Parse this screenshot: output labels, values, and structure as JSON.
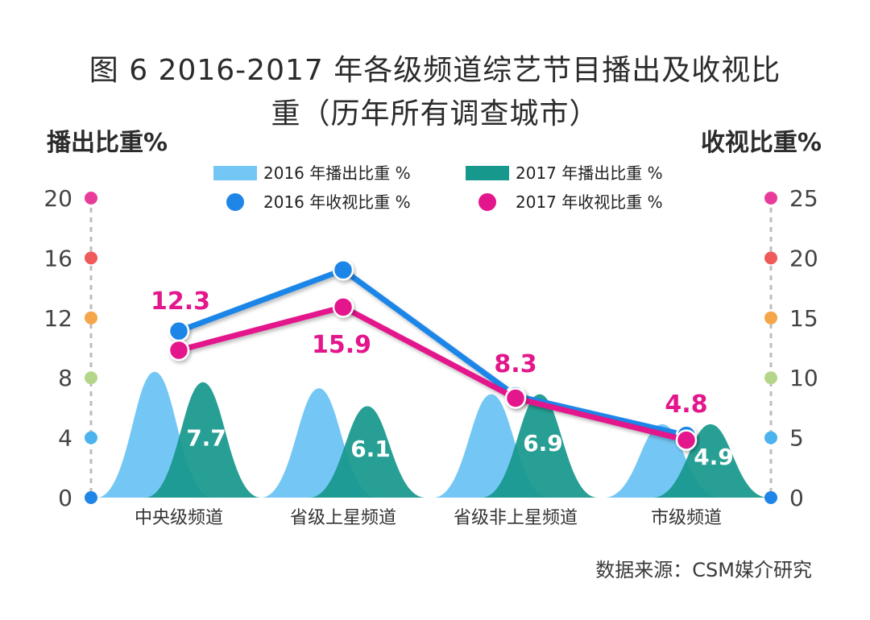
{
  "title_line1": "图 6  2016-2017 年各级频道综艺节目播出及收视比",
  "title_line2": "重（历年所有调查城市）",
  "left_axis_title": "播出比重%",
  "right_axis_title": "收视比重%",
  "source": "数据来源：CSM媒介研究",
  "colors": {
    "bar2016": "#74c7f5",
    "bar2017": "#17988c",
    "line2016": "#1f86e8",
    "line2017": "#e3168c",
    "overlap": "#0f6e8a"
  },
  "chart_data": {
    "type": "bar",
    "categories": [
      "中央级频道",
      "省级上星频道",
      "省级非上星频道",
      "市级频道"
    ],
    "left_axis": {
      "label": "播出比重%",
      "ticks": [
        0,
        4,
        8,
        12,
        16,
        20
      ],
      "range": [
        0,
        20
      ]
    },
    "right_axis": {
      "label": "收视比重%",
      "ticks": [
        0,
        5,
        10,
        15,
        20,
        25
      ],
      "range": [
        0,
        25
      ]
    },
    "series": [
      {
        "name": "2016 年播出比重 %",
        "type": "bar",
        "axis": "left",
        "values": [
          8.4,
          7.3,
          6.9,
          4.9
        ]
      },
      {
        "name": "2017 年播出比重 %",
        "type": "bar",
        "axis": "left",
        "values": [
          7.7,
          6.1,
          6.9,
          4.9
        ]
      },
      {
        "name": "2016 年收视比重 %",
        "type": "line",
        "axis": "right",
        "values": [
          13.9,
          19.0,
          8.5,
          5.2
        ]
      },
      {
        "name": "2017 年收视比重 %",
        "type": "line",
        "axis": "right",
        "values": [
          12.3,
          15.9,
          8.3,
          4.8
        ]
      }
    ],
    "bar_labels_2017": [
      "7.7",
      "6.1",
      "6.9",
      "4.9"
    ],
    "line_labels_2017": [
      "12.3",
      "15.9",
      "8.3",
      "4.8"
    ],
    "axis_dot_colors": [
      "#1f86e8",
      "#4db3ef",
      "#b5d68a",
      "#f5a64a",
      "#ef5a5a",
      "#e83c9a"
    ]
  }
}
